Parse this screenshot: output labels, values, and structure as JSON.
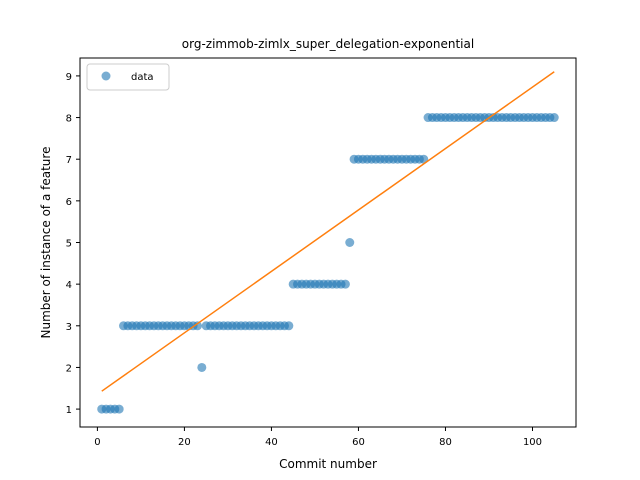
{
  "chart_data": {
    "type": "scatter",
    "title": "org-zimmob-zimlx_super_delegation-exponential",
    "xlabel": "Commit number",
    "ylabel": "Number of instance of a feature",
    "xlim": [
      -4,
      110
    ],
    "ylim": [
      0.57,
      9.43
    ],
    "xticks": [
      0,
      20,
      40,
      60,
      80,
      100
    ],
    "yticks": [
      1,
      2,
      3,
      4,
      5,
      6,
      7,
      8,
      9
    ],
    "legend": {
      "position": "top-left",
      "entries": [
        "data"
      ]
    },
    "colors": {
      "scatter": "#1f77b4",
      "fit": "#ff7f0e"
    },
    "series": [
      {
        "name": "data",
        "kind": "scatter",
        "x": [
          1,
          2,
          3,
          4,
          5,
          6,
          7,
          8,
          9,
          10,
          11,
          12,
          13,
          14,
          15,
          16,
          17,
          18,
          19,
          20,
          21,
          22,
          23,
          24,
          25,
          26,
          27,
          28,
          29,
          30,
          31,
          32,
          33,
          34,
          35,
          36,
          37,
          38,
          39,
          40,
          41,
          42,
          43,
          44,
          45,
          46,
          47,
          48,
          49,
          50,
          51,
          52,
          53,
          54,
          55,
          56,
          57,
          58,
          59,
          60,
          61,
          62,
          63,
          64,
          65,
          66,
          67,
          68,
          69,
          70,
          71,
          72,
          73,
          74,
          75,
          76,
          77,
          78,
          79,
          80,
          81,
          82,
          83,
          84,
          85,
          86,
          87,
          88,
          89,
          90,
          91,
          92,
          93,
          94,
          95,
          96,
          97,
          98,
          99,
          100,
          101,
          102,
          103,
          104,
          105
        ],
        "y": [
          1,
          1,
          1,
          1,
          1,
          3,
          3,
          3,
          3,
          3,
          3,
          3,
          3,
          3,
          3,
          3,
          3,
          3,
          3,
          3,
          3,
          3,
          3,
          2,
          3,
          3,
          3,
          3,
          3,
          3,
          3,
          3,
          3,
          3,
          3,
          3,
          3,
          3,
          3,
          3,
          3,
          3,
          3,
          3,
          4,
          4,
          4,
          4,
          4,
          4,
          4,
          4,
          4,
          4,
          4,
          4,
          4,
          5,
          7,
          7,
          7,
          7,
          7,
          7,
          7,
          7,
          7,
          7,
          7,
          7,
          7,
          7,
          7,
          7,
          7,
          8,
          8,
          8,
          8,
          8,
          8,
          8,
          8,
          8,
          8,
          8,
          8,
          8,
          8,
          8,
          8,
          8,
          8,
          8,
          8,
          8,
          8,
          8,
          8,
          8,
          8,
          8,
          8,
          8,
          8
        ]
      },
      {
        "kind": "line",
        "x": [
          1,
          105
        ],
        "y": [
          1.43,
          9.1
        ]
      }
    ]
  }
}
